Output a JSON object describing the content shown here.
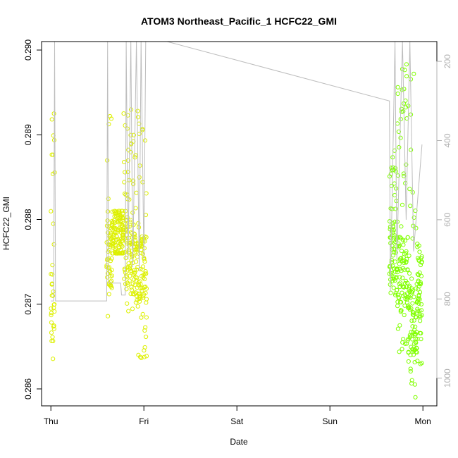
{
  "chart_data": {
    "type": "scatter",
    "title": "ATOM3 Northeast_Pacific_1 HCFC22_GMI",
    "xlabel": "Date",
    "ylabel": "HCFC22_GMI",
    "x_tick_labels": [
      "Thu",
      "Fri",
      "Sat",
      "Sun",
      "Mon"
    ],
    "x_ticks_days": [
      0,
      1,
      2,
      3,
      4
    ],
    "xlim_days": [
      -0.1,
      4.15
    ],
    "ylim": [
      0.2858,
      0.2901
    ],
    "y_ticks": [
      0.286,
      0.287,
      0.288,
      0.289,
      0.29
    ],
    "y_tick_labels": [
      "0.286",
      "0.287",
      "0.288",
      "0.289",
      "0.290"
    ],
    "right_axis": {
      "label": "",
      "reversed": true,
      "lim": [
        1070,
        150
      ],
      "ticks": [
        200,
        400,
        600,
        800,
        1000
      ],
      "tick_labels": [
        "200",
        "400",
        "600",
        "800",
        "1000"
      ]
    },
    "grid": false,
    "colors": {
      "early": "#ddf000",
      "late": "#80ff00",
      "pressure_line": "#bdbdbd"
    },
    "series": [
      {
        "segments": [
          {
            "x0": 0.0,
            "x1": 0.04,
            "y_min": 0.2861,
            "y_max": 0.2893,
            "y_base": 0.2869
          },
          {
            "x0": 0.6,
            "x1": 0.66,
            "y_min": 0.2868,
            "y_max": 0.2893,
            "y_base": 0.2876
          },
          {
            "x0": 0.66,
            "x1": 0.78,
            "y_min": 0.2876,
            "y_max": 0.2881,
            "y_base": 0.2878
          },
          {
            "x0": 0.78,
            "x1": 0.9,
            "y_min": 0.2869,
            "y_max": 0.2893,
            "y_base": 0.2876
          },
          {
            "x0": 0.9,
            "x1": 1.03,
            "y_min": 0.2863,
            "y_max": 0.2893,
            "y_base": 0.2874
          }
        ]
      },
      {
        "segments": [
          {
            "x0": 3.64,
            "x1": 3.72,
            "y_min": 0.2871,
            "y_max": 0.2889,
            "y_base": 0.2876
          },
          {
            "x0": 3.72,
            "x1": 3.84,
            "y_min": 0.2864,
            "y_max": 0.2899,
            "y_base": 0.2874
          },
          {
            "x0": 3.84,
            "x1": 3.94,
            "y_min": 0.2858,
            "y_max": 0.2898,
            "y_base": 0.2868
          },
          {
            "x0": 3.94,
            "x1": 3.99,
            "y_min": 0.2862,
            "y_max": 0.2877,
            "y_base": 0.2872
          }
        ]
      }
    ],
    "pressure_line": [
      [
        0.0,
        805
      ],
      [
        0.03,
        805
      ],
      [
        0.04,
        150
      ],
      [
        0.05,
        805
      ],
      [
        0.6,
        805
      ],
      [
        0.61,
        150
      ],
      [
        0.62,
        760
      ],
      [
        0.75,
        760
      ],
      [
        0.76,
        790
      ],
      [
        0.8,
        790
      ],
      [
        0.81,
        150
      ],
      [
        0.83,
        700
      ],
      [
        0.86,
        150
      ],
      [
        0.88,
        720
      ],
      [
        0.92,
        150
      ],
      [
        0.95,
        730
      ],
      [
        0.97,
        150
      ],
      [
        1.0,
        700
      ],
      [
        1.02,
        150
      ],
      [
        1.25,
        150
      ],
      [
        3.64,
        300
      ],
      [
        3.65,
        780
      ],
      [
        3.7,
        150
      ],
      [
        3.72,
        700
      ],
      [
        3.78,
        150
      ],
      [
        3.82,
        600
      ],
      [
        3.86,
        150
      ],
      [
        3.9,
        680
      ],
      [
        3.96,
        500
      ],
      [
        3.99,
        410
      ]
    ]
  }
}
